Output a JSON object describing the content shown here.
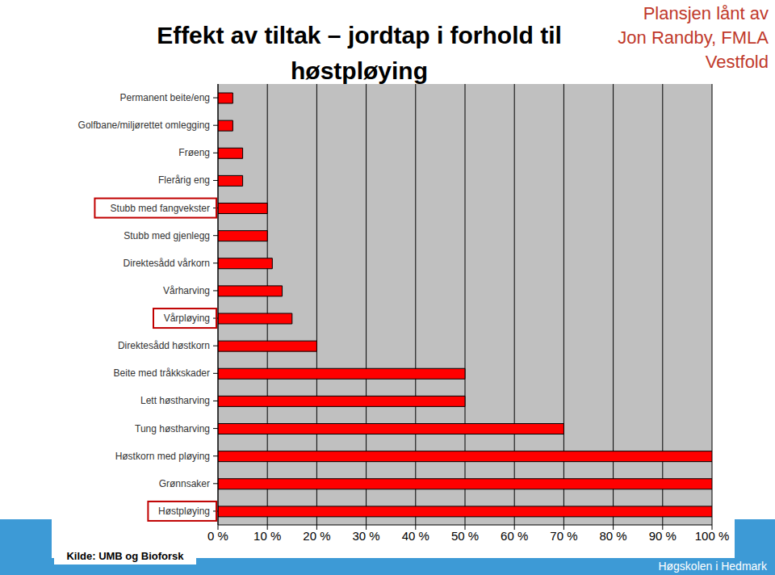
{
  "chart_data": {
    "type": "bar",
    "orientation": "horizontal",
    "title": "Effekt av tiltak – jordtap i forhold til høstpløying",
    "annotations": [
      "Plansjen lånt av Jon Randby, FMLA Vestfold",
      "Kilde: UMB og Bioforsk",
      "Høgskolen i Hedmark"
    ],
    "categories": [
      "Permanent beite/eng",
      "Golfbane/miljørettet omlegging",
      "Frøeng",
      "Flerårig eng",
      "Stubb med fangvekster",
      "Stubb med gjenlegg",
      "Direktesådd vårkorn",
      "Vårharving",
      "Vårpløying",
      "Direktesådd høstkorn",
      "Beite med tråkkskader",
      "Lett høstharving",
      "Tung høstharving",
      "Høstkorn med pløying",
      "Grønnsaker",
      "Høstpløying"
    ],
    "values": [
      3,
      3,
      5,
      5,
      10,
      10,
      11,
      13,
      15,
      20,
      50,
      50,
      70,
      100,
      100,
      100
    ],
    "color": "#ff0000",
    "xlim": [
      0,
      100
    ],
    "xticks": [
      {
        "value": 0,
        "label": "0 %"
      },
      {
        "value": 10,
        "label": "10 %"
      },
      {
        "value": 20,
        "label": "20 %"
      },
      {
        "value": 30,
        "label": "30 %"
      },
      {
        "value": 40,
        "label": "40 %"
      },
      {
        "value": 50,
        "label": "50 %"
      },
      {
        "value": 60,
        "label": "60 %"
      },
      {
        "value": 70,
        "label": "70 %"
      },
      {
        "value": 80,
        "label": "80 %"
      },
      {
        "value": 90,
        "label": "90 %"
      },
      {
        "value": 100,
        "label": "100 %"
      }
    ],
    "grid": true,
    "data_labels": false
  }
}
